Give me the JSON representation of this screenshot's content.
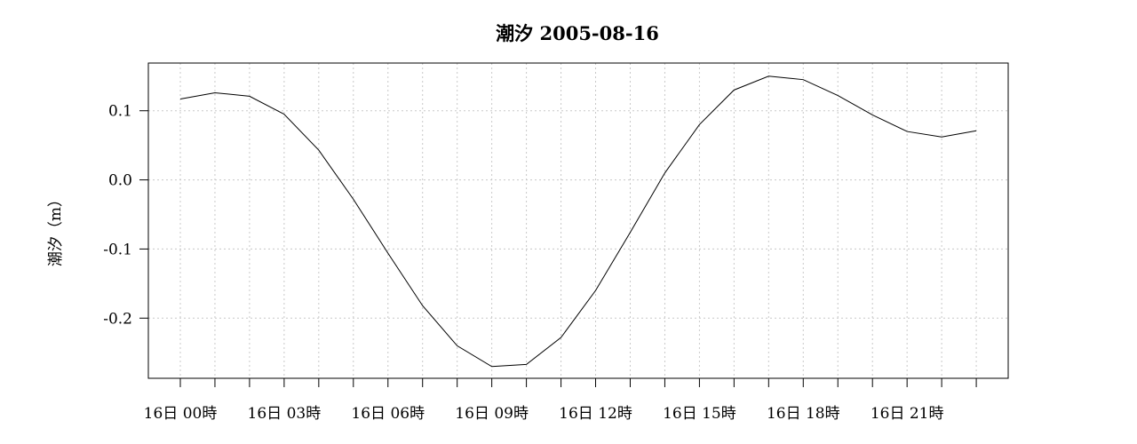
{
  "chart_data": {
    "type": "line",
    "title": "潮汐 2005-08-16",
    "ylabel": "潮汐（m）",
    "xlabel": "",
    "x": [
      "00",
      "01",
      "02",
      "03",
      "04",
      "05",
      "06",
      "07",
      "08",
      "09",
      "10",
      "11",
      "12",
      "13",
      "14",
      "15",
      "16",
      "17",
      "18",
      "19",
      "20",
      "21",
      "22",
      "23"
    ],
    "x_tick_labels": [
      "16日 00時",
      "16日 03時",
      "16日 06時",
      "16日 09時",
      "16日 12時",
      "16日 15時",
      "16日 18時",
      "16日 21時"
    ],
    "x_tick_label_hours": [
      0,
      3,
      6,
      9,
      12,
      15,
      18,
      21
    ],
    "series": [
      {
        "values": [
          0.117,
          0.126,
          0.121,
          0.095,
          0.043,
          -0.028,
          -0.106,
          -0.182,
          -0.24,
          -0.27,
          -0.267,
          -0.228,
          -0.16,
          -0.076,
          0.01,
          0.08,
          0.13,
          0.15,
          0.145,
          0.122,
          0.094,
          0.07,
          0.062,
          0.071
        ]
      }
    ],
    "y_ticks": [
      0.1,
      0.0,
      -0.1,
      -0.2
    ],
    "y_tick_labels": [
      "0.1",
      "0.0",
      "-0.1",
      "-0.2"
    ],
    "ylim": [
      -0.287,
      0.169
    ],
    "grid": true,
    "legend": "none",
    "colors": {
      "line": "#000000",
      "grid": "#c8c8c8"
    }
  }
}
